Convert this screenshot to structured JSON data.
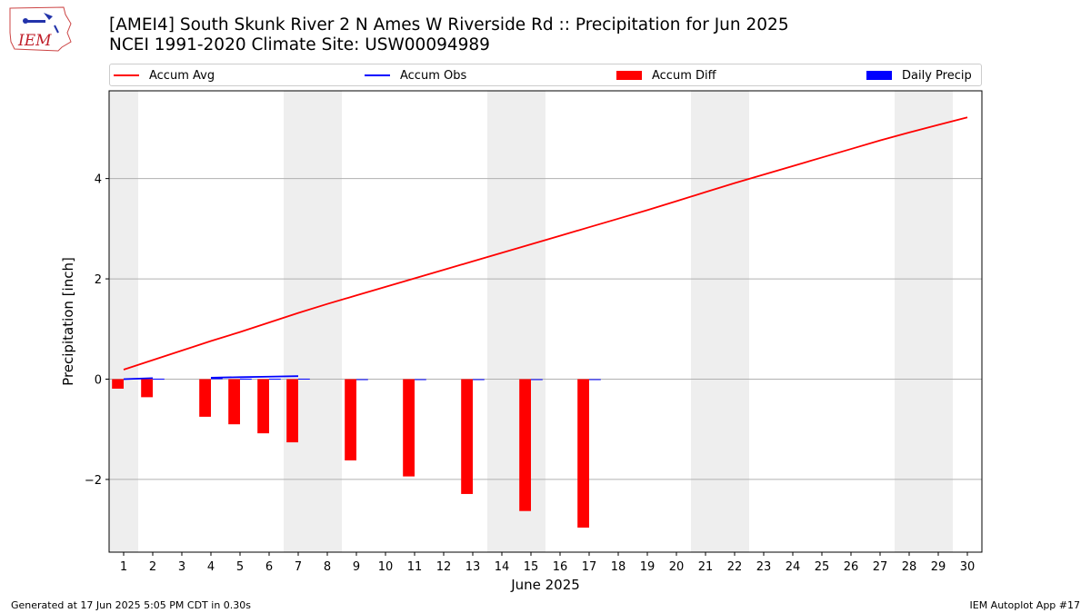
{
  "header": {
    "title_line1": "[AMEI4] South Skunk River 2 N Ames W Riverside Rd :: Precipitation for Jun 2025",
    "title_line2": "NCEI 1991-2020 Climate Site: USW00094989",
    "logo_text": "IEM"
  },
  "footer": {
    "generated": "Generated at 17 Jun 2025 5:05 PM CDT in 0.30s",
    "app": "IEM Autoplot App #17"
  },
  "chart_data": {
    "type": "bar",
    "xlabel": "June 2025",
    "ylabel": "Precipitation [inch]",
    "xlim": [
      0.5,
      30.5
    ],
    "ylim": [
      -3.45,
      5.75
    ],
    "yticks": [
      -2,
      0,
      2,
      4
    ],
    "ytick_labels": [
      "−2",
      "0",
      "2",
      "4"
    ],
    "x_ticks": [
      1,
      2,
      3,
      4,
      5,
      6,
      7,
      8,
      9,
      10,
      11,
      12,
      13,
      14,
      15,
      16,
      17,
      18,
      19,
      20,
      21,
      22,
      23,
      24,
      25,
      26,
      27,
      28,
      29,
      30
    ],
    "grid": "horizontal",
    "legend_position": "top",
    "weekend_shading": [
      [
        0.5,
        1.5
      ],
      [
        6.5,
        8.5
      ],
      [
        13.5,
        15.5
      ],
      [
        20.5,
        22.5
      ],
      [
        27.5,
        29.5
      ]
    ],
    "legend": [
      {
        "label": "Accum Avg",
        "kind": "line",
        "color": "#ff0000"
      },
      {
        "label": "Accum Obs",
        "kind": "line",
        "color": "#0000ff"
      },
      {
        "label": "Accum Diff",
        "kind": "bar",
        "color": "#ff0000"
      },
      {
        "label": "Daily Precip",
        "kind": "bar",
        "color": "#0000ff"
      }
    ],
    "series": {
      "accum_avg": {
        "name": "Accum Avg",
        "color": "#ff0000",
        "x": [
          1,
          2,
          3,
          4,
          5,
          6,
          7,
          8,
          9,
          10,
          11,
          12,
          13,
          14,
          15,
          16,
          17,
          18,
          19,
          20,
          21,
          22,
          23,
          24,
          25,
          26,
          27,
          28,
          29,
          30
        ],
        "values": [
          0.19,
          0.38,
          0.57,
          0.76,
          0.94,
          1.13,
          1.32,
          1.5,
          1.67,
          1.84,
          2.01,
          2.18,
          2.35,
          2.52,
          2.69,
          2.86,
          3.03,
          3.2,
          3.37,
          3.55,
          3.73,
          3.91,
          4.08,
          4.25,
          4.42,
          4.59,
          4.76,
          4.92,
          5.07,
          5.22
        ]
      },
      "accum_obs": {
        "name": "Accum Obs",
        "color": "#0000ff",
        "segments": [
          {
            "x": [
              1,
              2
            ],
            "values": [
              0.0,
              0.02
            ]
          },
          {
            "x": [
              4,
              5,
              6,
              7
            ],
            "values": [
              0.03,
              0.04,
              0.05,
              0.06
            ]
          }
        ]
      },
      "accum_diff": {
        "name": "Accum Diff",
        "color": "#ff0000",
        "x": [
          1,
          2,
          4,
          5,
          6,
          7,
          9,
          11,
          13,
          15,
          17
        ],
        "values": [
          -0.19,
          -0.36,
          -0.75,
          -0.9,
          -1.08,
          -1.26,
          -1.62,
          -1.94,
          -2.29,
          -2.63,
          -2.96
        ]
      },
      "daily_precip": {
        "name": "Daily Precip",
        "color": "#0000ff",
        "x": [
          2,
          4,
          5,
          6,
          7,
          9,
          11,
          13,
          15,
          17
        ],
        "values": [
          0.01,
          0.02,
          0.01,
          0.01,
          0.01,
          0.0,
          0.0,
          0.0,
          0.0,
          0.0
        ]
      }
    }
  }
}
